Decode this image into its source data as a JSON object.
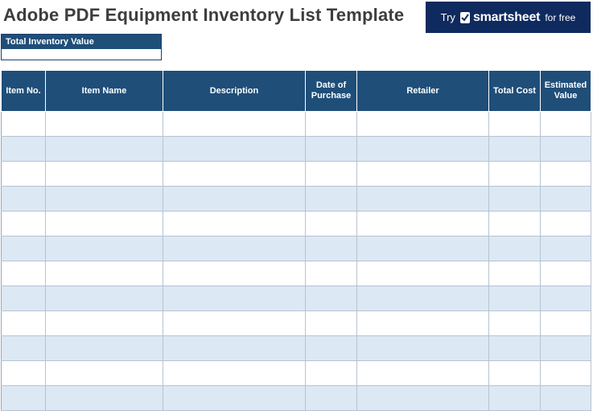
{
  "title": "Adobe PDF Equipment Inventory List Template",
  "banner": {
    "try": "Try",
    "brand": "smartsheet",
    "suffix": "for free",
    "icon": "smartsheet-check-icon",
    "bg_color": "#0f2a5e"
  },
  "total_inventory": {
    "label": "Total Inventory Value",
    "value": ""
  },
  "table": {
    "header_color": "#1f4e79",
    "alt_row_color": "#dde8f5",
    "columns": [
      {
        "label": "Item No."
      },
      {
        "label": "Item Name"
      },
      {
        "label": "Description"
      },
      {
        "label": "Date of Purchase"
      },
      {
        "label": "Retailer"
      },
      {
        "label": "Total Cost"
      },
      {
        "label": "Estimated Value"
      }
    ],
    "rows": [
      [
        "",
        "",
        "",
        "",
        "",
        "",
        ""
      ],
      [
        "",
        "",
        "",
        "",
        "",
        "",
        ""
      ],
      [
        "",
        "",
        "",
        "",
        "",
        "",
        ""
      ],
      [
        "",
        "",
        "",
        "",
        "",
        "",
        ""
      ],
      [
        "",
        "",
        "",
        "",
        "",
        "",
        ""
      ],
      [
        "",
        "",
        "",
        "",
        "",
        "",
        ""
      ],
      [
        "",
        "",
        "",
        "",
        "",
        "",
        ""
      ],
      [
        "",
        "",
        "",
        "",
        "",
        "",
        ""
      ],
      [
        "",
        "",
        "",
        "",
        "",
        "",
        ""
      ],
      [
        "",
        "",
        "",
        "",
        "",
        "",
        ""
      ],
      [
        "",
        "",
        "",
        "",
        "",
        "",
        ""
      ],
      [
        "",
        "",
        "",
        "",
        "",
        "",
        ""
      ]
    ]
  }
}
